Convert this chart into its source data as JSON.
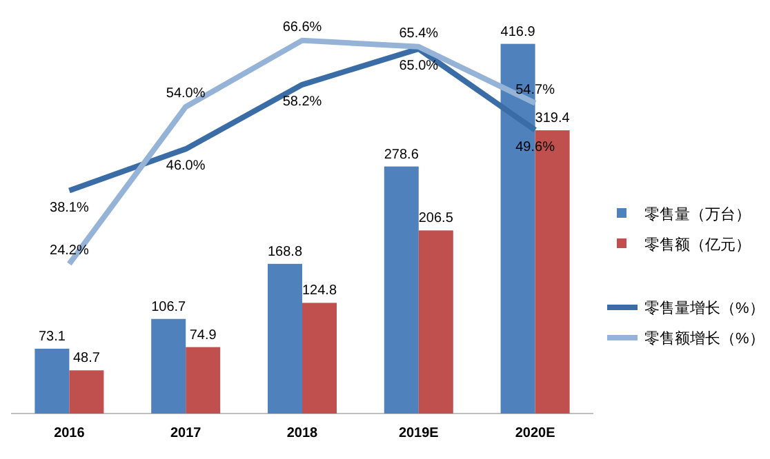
{
  "chart_data": {
    "type": "bar",
    "categories": [
      "2016",
      "2017",
      "2018",
      "2019E",
      "2020E"
    ],
    "data_labels": true,
    "legend": "right",
    "tick_labels": "x",
    "series": [
      {
        "name": "零售量（万台）",
        "color": "#4f81bd",
        "values": [
          73.1,
          106.7,
          168.8,
          278.6,
          416.9
        ]
      },
      {
        "name": "零售额（亿元）",
        "color": "#c0504d",
        "values": [
          48.7,
          74.9,
          124.8,
          206.5,
          319.4
        ]
      },
      {
        "name": "零售量增长（%）",
        "type": "line",
        "axis": "y2",
        "color": "#3a6ca6",
        "values": [
          38.1,
          46.0,
          58.2,
          65.0,
          49.6
        ],
        "value_labels": [
          "38.1%",
          "46.0%",
          "58.2%",
          "65.0%",
          "49.6%"
        ]
      },
      {
        "name": "零售额增长（%）",
        "type": "line",
        "axis": "y2",
        "color": "#95b3d7",
        "values": [
          24.2,
          54.0,
          66.6,
          65.4,
          54.7
        ],
        "value_labels": [
          "24.2%",
          "54.0%",
          "66.6%",
          "65.4%",
          "54.7%"
        ]
      }
    ]
  }
}
